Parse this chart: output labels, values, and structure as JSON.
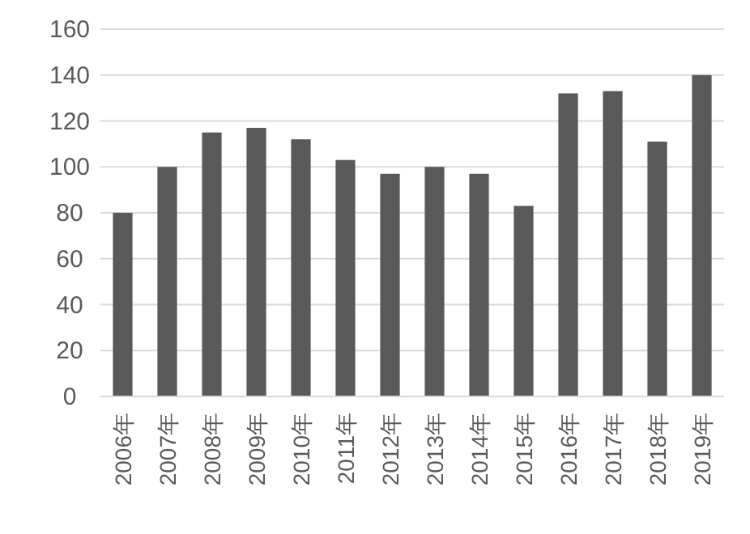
{
  "chart_data": {
    "type": "bar",
    "categories": [
      "2006年",
      "2007年",
      "2008年",
      "2009年",
      "2010年",
      "2011年",
      "2012年",
      "2013年",
      "2014年",
      "2015年",
      "2016年",
      "2017年",
      "2018年",
      "2019年"
    ],
    "values": [
      80,
      100,
      115,
      117,
      112,
      103,
      97,
      100,
      97,
      83,
      132,
      133,
      111,
      140
    ],
    "color": "#595959",
    "ylim": [
      0,
      160
    ],
    "yticks": [
      0,
      20,
      40,
      60,
      80,
      100,
      120,
      140,
      160
    ],
    "grid": "y"
  }
}
